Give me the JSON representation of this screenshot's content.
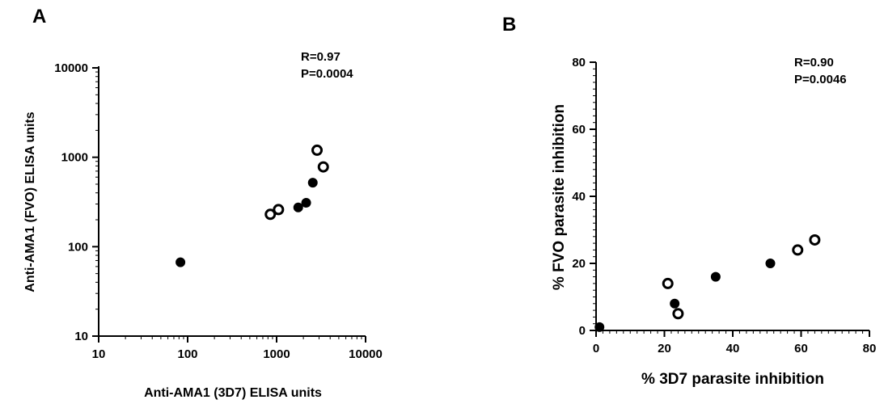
{
  "chart_data": [
    {
      "type": "scatter",
      "panel_label": "A",
      "xlabel": "Anti-AMA1 (3D7) ELISA units",
      "ylabel": "Anti-AMA1 (FVO) ELISA units",
      "xscale": "log",
      "yscale": "log",
      "xlim": [
        10,
        10000
      ],
      "ylim": [
        10,
        10000
      ],
      "xticks": [
        10,
        100,
        1000,
        10000
      ],
      "yticks": [
        10,
        100,
        1000,
        10000
      ],
      "x_tick_labels": [
        "10",
        "100",
        "1000",
        "10000"
      ],
      "y_tick_labels": [
        "10",
        "100",
        "1000",
        "10000"
      ],
      "annotations": [
        "R=0.97",
        "P=0.0004"
      ],
      "series": [
        {
          "marker": "filled-circle",
          "x": [
            83,
            1750,
            2150,
            2550
          ],
          "y": [
            67,
            275,
            310,
            520
          ]
        },
        {
          "marker": "open-circle",
          "x": [
            850,
            1050,
            2850,
            3350
          ],
          "y": [
            230,
            260,
            1200,
            780
          ]
        }
      ]
    },
    {
      "type": "scatter",
      "panel_label": "B",
      "xlabel": "% 3D7 parasite inhibition",
      "ylabel": "% FVO parasite inhibition",
      "xlim": [
        0,
        80
      ],
      "ylim": [
        0,
        80
      ],
      "xticks": [
        0,
        20,
        40,
        60,
        80
      ],
      "yticks": [
        0,
        20,
        40,
        60,
        80
      ],
      "x_tick_labels": [
        "0",
        "20",
        "40",
        "60",
        "80"
      ],
      "y_tick_labels": [
        "0",
        "20",
        "40",
        "60",
        "80"
      ],
      "annotations": [
        "R=0.90",
        "P=0.0046"
      ],
      "series": [
        {
          "marker": "filled-circle",
          "x": [
            1,
            23,
            35,
            51
          ],
          "y": [
            1,
            8,
            16,
            20
          ]
        },
        {
          "marker": "open-circle",
          "x": [
            21,
            24,
            59,
            64
          ],
          "y": [
            14,
            5,
            24,
            27
          ]
        }
      ]
    }
  ]
}
